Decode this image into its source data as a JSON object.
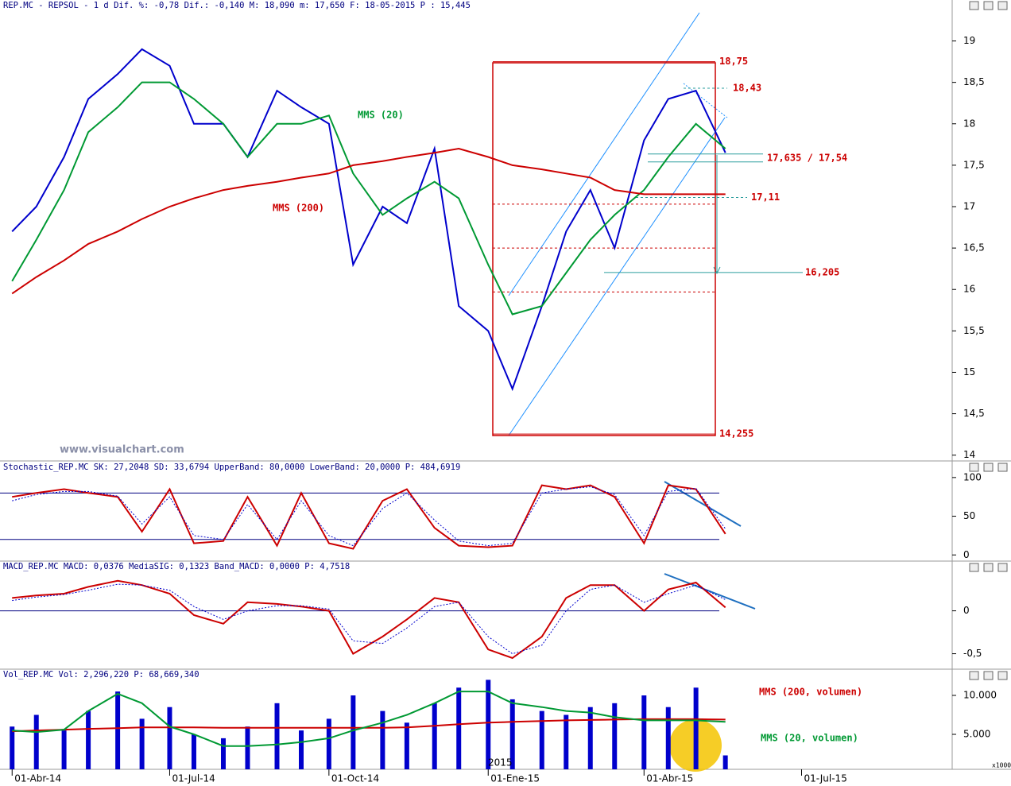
{
  "chart_data": [
    {
      "type": "line",
      "title": "REP.MC - REPSOL -  1 d Dif. %: -0,78 Dif.: -0,140 M: 18,090 m: 17,650 F: 18-05-2015 P : 15,445",
      "watermark": "www.visualchart.com",
      "x": [
        "01-04-2014",
        "15-04-2014",
        "01-05-2014",
        "15-05-2014",
        "01-06-2014",
        "15-06-2014",
        "01-07-2014",
        "15-07-2014",
        "01-08-2014",
        "15-08-2014",
        "01-09-2014",
        "15-09-2014",
        "01-10-2014",
        "15-10-2014",
        "01-11-2014",
        "15-11-2014",
        "01-12-2014",
        "15-12-2014",
        "01-01-2015",
        "15-01-2015",
        "01-02-2015",
        "15-02-2015",
        "01-03-2015",
        "15-03-2015",
        "01-04-2015",
        "15-04-2015",
        "01-05-2015",
        "18-05-2015"
      ],
      "xlim": [
        "25-03-2014",
        "26-09-2015"
      ],
      "series": [
        {
          "color": "#0000cc",
          "values": [
            16.7,
            17.0,
            17.6,
            18.3,
            18.6,
            18.9,
            18.7,
            18.0,
            18.0,
            17.6,
            18.4,
            18.2,
            18.0,
            16.3,
            17.0,
            16.8,
            17.7,
            15.8,
            15.5,
            14.8,
            15.8,
            16.7,
            17.2,
            16.5,
            17.8,
            18.3,
            18.4,
            17.65
          ]
        },
        {
          "name": "MMS (20)",
          "color": "#009933",
          "values": [
            16.1,
            16.6,
            17.2,
            17.9,
            18.2,
            18.5,
            18.5,
            18.3,
            18.0,
            17.6,
            18.0,
            18.0,
            18.1,
            17.4,
            16.9,
            17.1,
            17.3,
            17.1,
            16.3,
            15.7,
            15.8,
            16.2,
            16.6,
            16.9,
            17.2,
            17.6,
            18.0,
            17.7
          ]
        },
        {
          "name": "MMS (200)",
          "color": "#cc0000",
          "values": [
            15.95,
            16.15,
            16.35,
            16.55,
            16.7,
            16.85,
            17.0,
            17.1,
            17.2,
            17.25,
            17.3,
            17.35,
            17.4,
            17.5,
            17.55,
            17.6,
            17.65,
            17.7,
            17.6,
            17.5,
            17.45,
            17.4,
            17.35,
            17.2,
            17.15,
            17.15,
            17.15,
            17.15
          ]
        }
      ],
      "ylim": [
        13.93,
        19.36
      ],
      "yticks": [
        19,
        {
          "value": 18.5,
          "label": "18,5"
        },
        18,
        {
          "value": 17.5,
          "label": "17,5"
        },
        17,
        {
          "value": 16.5,
          "label": "16,5"
        },
        16,
        {
          "value": 15.5,
          "label": "15,5"
        },
        15,
        {
          "value": 14.5,
          "label": "14,5"
        },
        14
      ],
      "levels": [
        {
          "value": 18.75,
          "label": "18,75",
          "color": "#cc0000"
        },
        {
          "value": 18.43,
          "label": "18,43",
          "color": "#cc0000"
        },
        {
          "value": [
            17.635,
            17.54
          ],
          "label": "17,635 / 17,54",
          "color": "#cc0000"
        },
        {
          "value": 17.11,
          "label": "17,11",
          "color": "#cc0000"
        },
        {
          "value": 16.205,
          "label": "16,205",
          "color": "#cc0000"
        },
        {
          "value": 14.255,
          "label": "14,255",
          "color": "#cc0000"
        }
      ],
      "retracements": [
        17.03,
        16.5,
        15.97
      ]
    },
    {
      "type": "line",
      "title": "Stochastic_REP.MC SK: 27,2048 SD: 33,6794 UpperBand: 80,0000 LowerBand: 20,0000 P: 484,6919",
      "x": [
        "01-04-2014",
        "15-04-2014",
        "01-05-2014",
        "15-05-2014",
        "01-06-2014",
        "15-06-2014",
        "01-07-2014",
        "15-07-2014",
        "01-08-2014",
        "15-08-2014",
        "01-09-2014",
        "15-09-2014",
        "01-10-2014",
        "15-10-2014",
        "01-11-2014",
        "15-11-2014",
        "01-12-2014",
        "15-12-2014",
        "01-01-2015",
        "15-01-2015",
        "01-02-2015",
        "15-02-2015",
        "01-03-2015",
        "15-03-2015",
        "01-04-2015",
        "15-04-2015",
        "01-05-2015",
        "18-05-2015"
      ],
      "xlim": [
        "25-03-2014",
        "26-09-2015"
      ],
      "series": [
        {
          "color": "#cc0000",
          "values": [
            75,
            80,
            85,
            80,
            75,
            30,
            85,
            15,
            18,
            75,
            12,
            80,
            15,
            8,
            70,
            85,
            35,
            12,
            10,
            12,
            90,
            85,
            90,
            75,
            15,
            90,
            85,
            27.2
          ]
        },
        {
          "color": "#0000cc",
          "style": "dotted",
          "values": [
            70,
            78,
            82,
            82,
            76,
            40,
            75,
            25,
            20,
            65,
            20,
            70,
            25,
            12,
            60,
            80,
            45,
            18,
            12,
            15,
            80,
            85,
            88,
            78,
            25,
            82,
            86,
            33.7
          ]
        }
      ],
      "bands": [
        80,
        20
      ],
      "ylim": [
        -10,
        106
      ],
      "yticks": [
        100,
        50,
        0
      ]
    },
    {
      "type": "line",
      "title": "MACD_REP.MC MACD: 0,0376 MediaSIG: 0,1323 Band_MACD: 0,0000 P: 4,7518",
      "x": [
        "01-04-2014",
        "15-04-2014",
        "01-05-2014",
        "15-05-2014",
        "01-06-2014",
        "15-06-2014",
        "01-07-2014",
        "15-07-2014",
        "01-08-2014",
        "15-08-2014",
        "01-09-2014",
        "15-09-2014",
        "01-10-2014",
        "15-10-2014",
        "01-11-2014",
        "15-11-2014",
        "01-12-2014",
        "15-12-2014",
        "01-01-2015",
        "15-01-2015",
        "01-02-2015",
        "15-02-2015",
        "01-03-2015",
        "15-03-2015",
        "01-04-2015",
        "15-04-2015",
        "01-05-2015",
        "18-05-2015"
      ],
      "xlim": [
        "25-03-2014",
        "26-09-2015"
      ],
      "series": [
        {
          "color": "#cc0000",
          "values": [
            0.15,
            0.18,
            0.2,
            0.28,
            0.35,
            0.3,
            0.2,
            -0.05,
            -0.15,
            0.1,
            0.08,
            0.05,
            0.0,
            -0.5,
            -0.3,
            -0.1,
            0.15,
            0.1,
            -0.45,
            -0.55,
            -0.3,
            0.15,
            0.3,
            0.3,
            0.0,
            0.25,
            0.33,
            0.04
          ]
        },
        {
          "color": "#0000cc",
          "style": "dotted",
          "values": [
            0.12,
            0.16,
            0.19,
            0.24,
            0.31,
            0.3,
            0.24,
            0.05,
            -0.1,
            0.0,
            0.06,
            0.06,
            0.02,
            -0.35,
            -0.38,
            -0.2,
            0.05,
            0.1,
            -0.3,
            -0.5,
            -0.4,
            0.0,
            0.25,
            0.3,
            0.1,
            0.2,
            0.3,
            0.13
          ]
        }
      ],
      "bands": [
        0
      ],
      "ylim": [
        -0.68,
        0.45
      ],
      "yticks": [
        0,
        {
          "value": -0.5,
          "label": "-0,5"
        }
      ]
    },
    {
      "type": "bar",
      "title": "Vol_REP.MC Vol: 2,296,220 P: 68,669,340",
      "unit_label": "x1000",
      "year_label": "2015",
      "x": [
        "01-04-2014",
        "15-04-2014",
        "01-05-2014",
        "15-05-2014",
        "01-06-2014",
        "15-06-2014",
        "01-07-2014",
        "15-07-2014",
        "01-08-2014",
        "15-08-2014",
        "01-09-2014",
        "15-09-2014",
        "01-10-2014",
        "15-10-2014",
        "01-11-2014",
        "15-11-2014",
        "01-12-2014",
        "15-12-2014",
        "01-01-2015",
        "15-01-2015",
        "01-02-2015",
        "15-02-2015",
        "01-03-2015",
        "15-03-2015",
        "01-04-2015",
        "15-04-2015",
        "01-05-2015",
        "18-05-2015"
      ],
      "xlim": [
        "25-03-2014",
        "26-09-2015"
      ],
      "xticks": [
        {
          "value": "01-04-2014",
          "label": "01-Abr-14"
        },
        {
          "value": "01-07-2014",
          "label": "01-Jul-14"
        },
        {
          "value": "01-10-2014",
          "label": "01-Oct-14"
        },
        {
          "value": "01-01-2015",
          "label": "01-Ene-15"
        },
        {
          "value": "01-04-2015",
          "label": "01-Abr-15"
        },
        {
          "value": "01-07-2015",
          "label": "01-Jul-15"
        }
      ],
      "series": [
        {
          "color": "#0000cc",
          "values": [
            6000,
            7500,
            5500,
            8000,
            10500,
            7000,
            8500,
            5000,
            4500,
            6000,
            9000,
            5500,
            7000,
            10000,
            8000,
            6500,
            9000,
            11000,
            12000,
            9500,
            8000,
            7500,
            8500,
            9000,
            10000,
            8500,
            11000,
            2296.22
          ]
        },
        {
          "name": "MMS (200, volumen)",
          "type": "line",
          "color": "#cc0000",
          "values": [
            5400,
            5500,
            5600,
            5700,
            5800,
            5900,
            5900,
            5900,
            5850,
            5850,
            5850,
            5850,
            5850,
            5850,
            5850,
            5900,
            6100,
            6300,
            6500,
            6600,
            6700,
            6800,
            6850,
            6900,
            6950,
            6950,
            6950,
            6900
          ]
        },
        {
          "name": "MMS (20, volumen)",
          "type": "line",
          "color": "#009933",
          "values": [
            5500,
            5300,
            5600,
            8000,
            10200,
            9000,
            6000,
            5000,
            3500,
            3500,
            3700,
            4000,
            4500,
            5500,
            6500,
            7500,
            9000,
            10500,
            10500,
            9000,
            8500,
            8000,
            7800,
            7200,
            6800,
            6800,
            6800,
            6600
          ]
        }
      ],
      "ylim": [
        510,
        11940
      ],
      "yticks": [
        {
          "value": 10000,
          "label": "10.000"
        },
        {
          "value": 5000,
          "label": "5.000"
        }
      ]
    }
  ]
}
